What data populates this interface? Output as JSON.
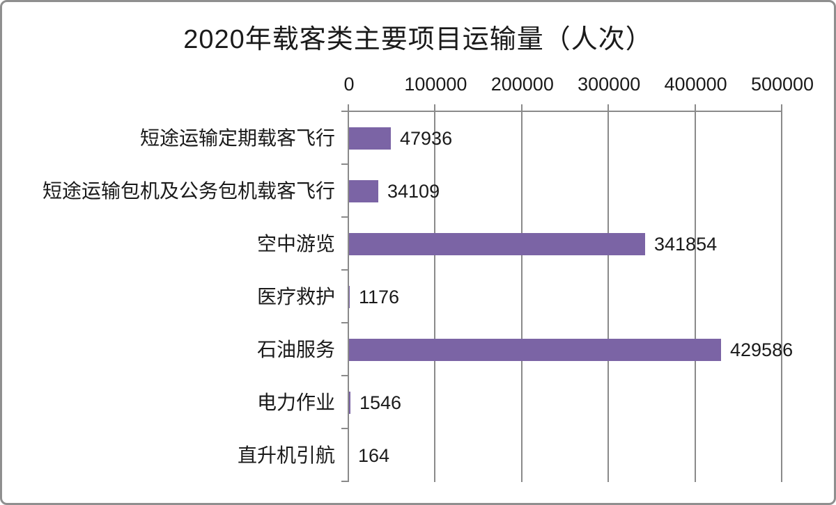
{
  "frame": {
    "background": "#ffffff",
    "border_color": "#8f8f8f"
  },
  "chart_data": {
    "type": "bar",
    "orientation": "horizontal",
    "title": "2020年载客类主要项目运输量（人次）",
    "categories": [
      "短途运输定期载客飞行",
      "短途运输包机及公务包机载客飞行",
      "空中游览",
      "医疗救护",
      "石油服务",
      "电力作业",
      "直升机引航"
    ],
    "values": [
      47936,
      34109,
      341854,
      1176,
      429586,
      1546,
      164
    ],
    "value_labels": [
      "47936",
      "34109",
      "341854",
      "1176",
      "429586",
      "1546",
      "164"
    ],
    "x_ticks": [
      "0",
      "100000",
      "200000",
      "300000",
      "400000",
      "500000"
    ],
    "x_tick_values": [
      0,
      100000,
      200000,
      300000,
      400000,
      500000
    ],
    "xlim": [
      0,
      500000
    ],
    "xlabel": "",
    "ylabel": "",
    "grid": true,
    "legend": false,
    "axis_position": "top",
    "bar_color": "#7b64a5",
    "line_color": "#8a8a8a",
    "text_color": "#1a1a1a"
  }
}
